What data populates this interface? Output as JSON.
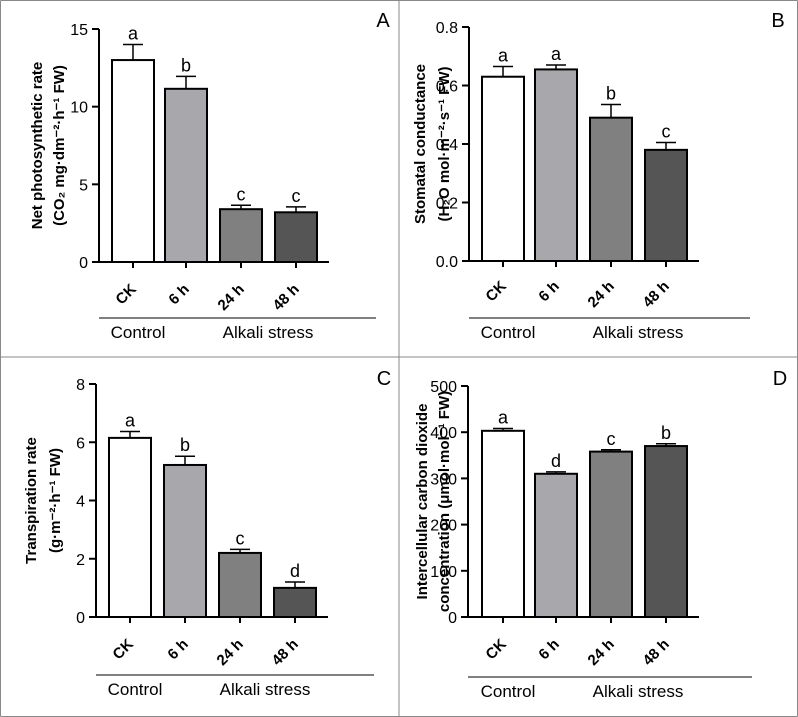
{
  "chart_data": [
    {
      "type": "bar",
      "panel_letter": "A",
      "ylabel_lines": [
        "Net photosynthetic rate",
        "(CO₂ mg·dm⁻²·h⁻¹ FW)"
      ],
      "categories": [
        "CK",
        "6 h",
        "24 h",
        "48 h"
      ],
      "values": [
        13.0,
        11.15,
        3.4,
        3.2
      ],
      "errors": [
        1.0,
        0.8,
        0.25,
        0.35
      ],
      "significance": [
        "a",
        "b",
        "c",
        "c"
      ],
      "ylim": [
        0,
        15
      ],
      "yticks": [
        0,
        5,
        10,
        15
      ],
      "tick_labels": [
        "0",
        "5",
        "10",
        "15"
      ],
      "group_labels": [
        "Control",
        "Alkali stress"
      ]
    },
    {
      "type": "bar",
      "panel_letter": "B",
      "ylabel_lines": [
        "Stomatal conductance",
        "(H₂O mol·m⁻²·s⁻¹ FW)"
      ],
      "categories": [
        "CK",
        "6 h",
        "24 h",
        "48 h"
      ],
      "values": [
        0.63,
        0.655,
        0.49,
        0.38
      ],
      "errors": [
        0.035,
        0.015,
        0.045,
        0.025
      ],
      "significance": [
        "a",
        "a",
        "b",
        "c"
      ],
      "ylim": [
        0,
        0.8
      ],
      "yticks": [
        0,
        0.2,
        0.4,
        0.6,
        0.8
      ],
      "tick_labels": [
        "0.0",
        "0.2",
        "0.4",
        "0.6",
        "0.8"
      ],
      "group_labels": [
        "Control",
        "Alkali stress"
      ]
    },
    {
      "type": "bar",
      "panel_letter": "C",
      "ylabel_lines": [
        "Transpiration rate",
        "(g·m⁻²·h⁻¹ FW)"
      ],
      "categories": [
        "CK",
        "6 h",
        "24 h",
        "48 h"
      ],
      "values": [
        6.15,
        5.22,
        2.2,
        1.0
      ],
      "errors": [
        0.22,
        0.3,
        0.12,
        0.2
      ],
      "significance": [
        "a",
        "b",
        "c",
        "d"
      ],
      "ylim": [
        0,
        8
      ],
      "yticks": [
        0,
        2,
        4,
        6,
        8
      ],
      "tick_labels": [
        "0",
        "2",
        "4",
        "6",
        "8"
      ],
      "group_labels": [
        "Control",
        "Alkali stress"
      ]
    },
    {
      "type": "bar",
      "panel_letter": "D",
      "ylabel_lines": [
        "Intercellular carbon dioxide",
        "concentration (μmol·mol⁻¹ FW)"
      ],
      "categories": [
        "CK",
        "6 h",
        "24 h",
        "48 h"
      ],
      "values": [
        403,
        310,
        358,
        370
      ],
      "errors": [
        5,
        4,
        4,
        5
      ],
      "significance": [
        "a",
        "d",
        "c",
        "b"
      ],
      "ylim": [
        0,
        500
      ],
      "yticks": [
        0,
        100,
        200,
        300,
        400,
        500
      ],
      "tick_labels": [
        "0",
        "100",
        "200",
        "300",
        "400",
        "500"
      ],
      "group_labels": [
        "Control",
        "Alkali stress"
      ]
    }
  ],
  "colors": {
    "bar_fills": [
      "#ffffff",
      "#a8a8ac",
      "#808080",
      "#555555"
    ],
    "stroke": "#000000",
    "panel_border": "#888888"
  }
}
